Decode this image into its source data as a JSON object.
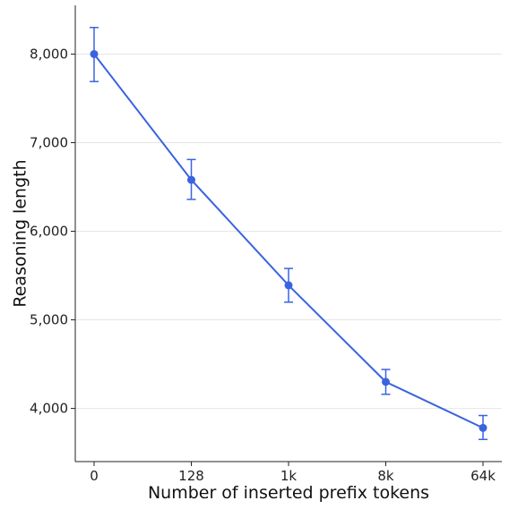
{
  "chart_data": {
    "type": "line",
    "title": "",
    "xlabel": "Number of inserted prefix tokens",
    "ylabel": "Reasoning length",
    "categories": [
      "0",
      "128",
      "1k",
      "8k",
      "64k"
    ],
    "series": [
      {
        "values": [
          8000,
          6580,
          5390,
          4300,
          3780
        ],
        "error_low": [
          7690,
          6360,
          5200,
          4160,
          3650
        ],
        "error_high": [
          8300,
          6810,
          5580,
          4440,
          3920
        ],
        "color": "#3a63e0"
      }
    ],
    "yticks": [
      4000,
      5000,
      6000,
      7000,
      8000
    ],
    "ytick_labels": [
      "4,000",
      "5,000",
      "6,000",
      "7,000",
      "8,000"
    ],
    "ylim": [
      3400,
      8550
    ],
    "grid": "horizontal",
    "legend": "none"
  }
}
